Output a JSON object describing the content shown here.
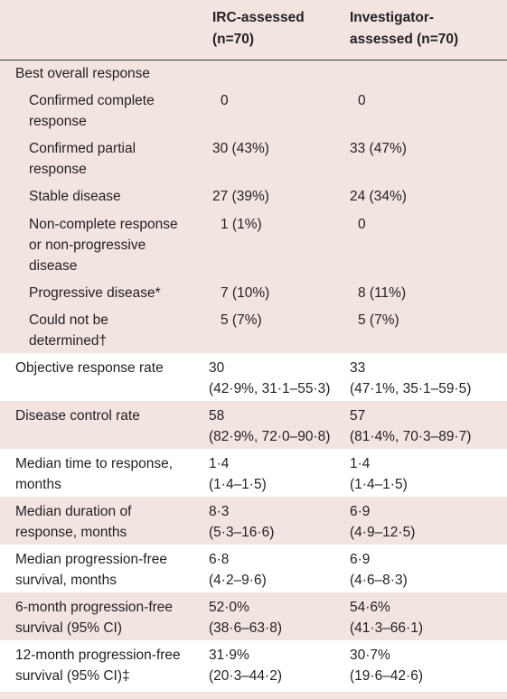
{
  "columns": {
    "irc": "IRC-assessed\n(n=70)",
    "investigator": "Investigator-\nassessed (n=70)"
  },
  "best_overall_response": {
    "label": "Best overall response",
    "rows": [
      {
        "label": "Confirmed complete\nresponse",
        "irc": "0",
        "inv": "0"
      },
      {
        "label": "Confirmed partial\nresponse",
        "irc": "30 (43%)",
        "inv": "33 (47%)"
      },
      {
        "label": "Stable disease",
        "irc": "27 (39%)",
        "inv": "24 (34%)"
      },
      {
        "label": "Non-complete response\nor non-progressive\ndisease",
        "irc": "1 (1%)",
        "inv": "0"
      },
      {
        "label": "Progressive disease*",
        "irc": "7 (10%)",
        "inv": "8 (11%)"
      },
      {
        "label": "Could not be\ndetermined†",
        "irc": "5 (7%)",
        "inv": "5 (7%)"
      }
    ]
  },
  "metrics": [
    {
      "label": "Objective response rate",
      "irc": "30\n(42·9%, 31·1–55·3)",
      "inv": "33\n(47·1%, 35·1–59·5)"
    },
    {
      "label": "Disease control rate",
      "irc": "58\n(82·9%, 72·0–90·8)",
      "inv": "57\n(81·4%, 70·3–89·7)"
    },
    {
      "label": "Median time to response,\nmonths",
      "irc": " 1·4\n(1·4–1·5)",
      "inv": " 1·4\n(1·4–1·5)"
    },
    {
      "label": "Median duration of\nresponse, months",
      "irc": " 8·3\n(5·3–16·6)",
      "inv": " 6·9\n(4·9–12·5)"
    },
    {
      "label": "Median progression-free\nsurvival, months",
      "irc": " 6·8\n(4·2–9·6)",
      "inv": " 6·9\n(4·6–8·3)"
    },
    {
      "label": "6-month progression-free\nsurvival (95% CI)",
      "irc": "52·0%\n(38·6–63·8)",
      "inv": "54·6%\n(41·3–66·1)"
    },
    {
      "label": "12-month progression-free\nsurvival (95% CI)‡",
      "irc": "31·9%\n(20·3–44·2)",
      "inv": "30·7%\n(19·6–42·6)"
    }
  ]
}
